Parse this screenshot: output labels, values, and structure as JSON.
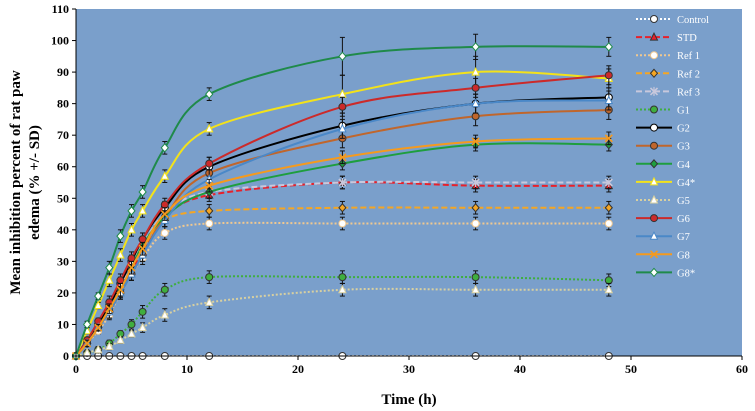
{
  "chart_data": {
    "type": "line",
    "title": "",
    "xlabel": "Time (h)",
    "ylabel_line1": "Mean inhibition percent of rat paw",
    "ylabel_line2": "edema (% +/- SD)",
    "xlim": [
      0,
      60
    ],
    "ylim": [
      0,
      110
    ],
    "xticks": [
      0,
      10,
      20,
      30,
      40,
      50,
      60
    ],
    "yticks": [
      0,
      10,
      20,
      30,
      40,
      50,
      60,
      70,
      80,
      90,
      100,
      110
    ],
    "xtick_labels": [
      "0",
      "10",
      "20",
      "30",
      "40",
      "50",
      "60"
    ],
    "ytick_labels": [
      "0",
      "10",
      "20",
      "30",
      "40",
      "50",
      "60",
      "70",
      "80",
      "90",
      "100",
      "110"
    ],
    "plot_background": "#7a9fcb",
    "legend_position": "right",
    "x": [
      0,
      1,
      2,
      3,
      4,
      5,
      6,
      8,
      12,
      24,
      36,
      48
    ],
    "series": [
      {
        "name": "Control",
        "color": "#ffffff",
        "dash": "2,2",
        "marker": "circle-filled",
        "values": [
          0,
          0,
          0,
          0,
          0,
          0,
          0,
          0,
          0,
          0,
          0,
          0
        ],
        "err": [
          0,
          0,
          0,
          0,
          0,
          0,
          0,
          0,
          0,
          0,
          0,
          0
        ]
      },
      {
        "name": "STD",
        "color": "#e8202a",
        "dash": "6,3",
        "marker": "triangle-filled",
        "values": [
          0,
          5,
          10,
          15,
          21,
          27,
          33,
          44,
          51,
          55,
          54,
          54
        ],
        "err": [
          0,
          1,
          1,
          1.5,
          2,
          2,
          2,
          2,
          2,
          2,
          2,
          2
        ]
      },
      {
        "name": "Ref 1",
        "color": "#f0c890",
        "dash": "2,2",
        "marker": "circle-open",
        "values": [
          0,
          4,
          8,
          13,
          20,
          26,
          31,
          39,
          42,
          42,
          42,
          42
        ],
        "err": [
          0,
          1,
          1,
          1.5,
          1.5,
          2,
          2,
          2,
          2,
          2,
          2,
          2
        ]
      },
      {
        "name": "Ref 2",
        "color": "#f5a623",
        "dash": "6,3",
        "marker": "diamond-filled",
        "values": [
          0,
          5,
          10,
          15,
          22,
          28,
          34,
          43,
          46,
          47,
          47,
          47
        ],
        "err": [
          0,
          1,
          1,
          1.5,
          2,
          2,
          2,
          2,
          2,
          2,
          2,
          2
        ]
      },
      {
        "name": "Ref 3",
        "color": "#c8c8dc",
        "dash": "6,3",
        "marker": "star",
        "values": [
          0,
          5,
          10,
          16,
          22,
          29,
          35,
          45,
          52,
          55,
          55,
          55
        ],
        "err": [
          0,
          1,
          1,
          1.5,
          2,
          2,
          2,
          2,
          2,
          2,
          2,
          2
        ]
      },
      {
        "name": "G1",
        "color": "#3fae3f",
        "dash": "2,2",
        "marker": "circle-filled",
        "values": [
          0,
          1,
          2,
          4,
          7,
          10,
          14,
          21,
          25,
          25,
          25,
          24
        ],
        "err": [
          0,
          0.5,
          1,
          1,
          1,
          1.5,
          2,
          2,
          2,
          2,
          2,
          2
        ]
      },
      {
        "name": "G2",
        "color": "#000000",
        "dash": "",
        "marker": "circle-open",
        "values": [
          0,
          5,
          10,
          16,
          23,
          30,
          37,
          47,
          60,
          73,
          80,
          82
        ],
        "err": [
          0,
          1,
          1,
          2,
          2,
          2,
          2,
          2,
          3,
          4,
          3,
          3
        ]
      },
      {
        "name": "G3",
        "color": "#c0662c",
        "dash": "",
        "marker": "circle-filled",
        "values": [
          0,
          4,
          9,
          14,
          20,
          26,
          32,
          44,
          58,
          69,
          76,
          78
        ],
        "err": [
          0,
          1,
          1,
          2,
          2,
          2,
          2,
          2,
          3,
          3,
          3,
          3
        ]
      },
      {
        "name": "G4",
        "color": "#1e9e3e",
        "dash": "",
        "marker": "diamond-filled",
        "values": [
          0,
          4,
          9,
          15,
          21,
          28,
          35,
          44,
          52,
          61,
          67,
          67
        ],
        "err": [
          0,
          1,
          1,
          1.5,
          2,
          2,
          2,
          2,
          2,
          2,
          2,
          2
        ]
      },
      {
        "name": "G4*",
        "color": "#f3e21a",
        "dash": "",
        "marker": "triangle-open",
        "values": [
          0,
          8,
          16,
          24,
          32,
          40,
          46,
          57,
          72,
          83,
          90,
          88
        ],
        "err": [
          0,
          1,
          1,
          2,
          2,
          2,
          2,
          2,
          2,
          6,
          5,
          3
        ]
      },
      {
        "name": "G5",
        "color": "#d8d0a0",
        "dash": "2,2",
        "marker": "triangle-open",
        "values": [
          0,
          1,
          2,
          3,
          5,
          7,
          9,
          13,
          17,
          21,
          21,
          21
        ],
        "err": [
          0,
          0.5,
          0.5,
          1,
          1,
          1,
          1.5,
          2,
          2,
          2,
          2,
          2
        ]
      },
      {
        "name": "G6",
        "color": "#cc2a2a",
        "dash": "",
        "marker": "circle-filled",
        "values": [
          0,
          5,
          11,
          17,
          24,
          31,
          37,
          48,
          61,
          79,
          85,
          89
        ],
        "err": [
          0,
          1,
          1,
          2,
          2,
          2,
          2,
          2,
          2,
          3,
          3,
          3
        ]
      },
      {
        "name": "G7",
        "color": "#4a88c8",
        "dash": "",
        "marker": "triangle-open",
        "values": [
          0,
          4,
          9,
          14,
          20,
          26,
          32,
          43,
          56,
          72,
          80,
          81
        ],
        "err": [
          0,
          1,
          1,
          2,
          2,
          2,
          2,
          2,
          3,
          3,
          3,
          3
        ]
      },
      {
        "name": "G8",
        "color": "#f59a1e",
        "dash": "",
        "marker": "x",
        "values": [
          0,
          4,
          9,
          15,
          21,
          28,
          34,
          45,
          54,
          63,
          68,
          69
        ],
        "err": [
          0,
          1,
          1,
          1.5,
          2,
          2,
          2,
          2,
          2,
          2,
          2,
          2
        ]
      },
      {
        "name": "G8*",
        "color": "#1f8a4a",
        "dash": "",
        "marker": "diamond-open",
        "values": [
          0,
          10,
          19,
          28,
          38,
          46,
          52,
          66,
          83,
          95,
          98,
          98
        ],
        "err": [
          0,
          1,
          1,
          2,
          2,
          2,
          2,
          2,
          2,
          6,
          4,
          3
        ]
      }
    ]
  }
}
